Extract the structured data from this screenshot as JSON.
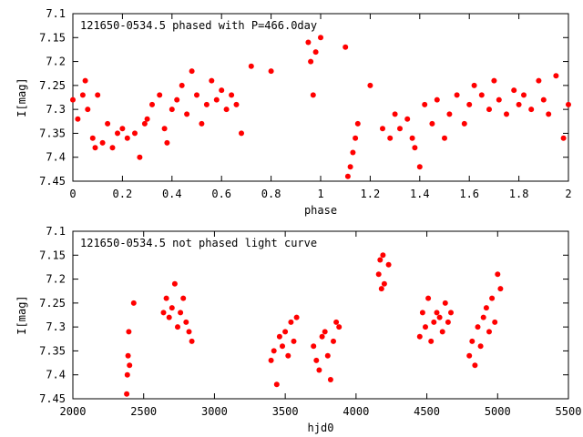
{
  "chart_data": [
    {
      "type": "scatter",
      "title": "121650-0534.5 phased with P=466.0day",
      "xlabel": "phase",
      "ylabel": "I[mag]",
      "xlim": [
        0,
        2
      ],
      "ylim": [
        7.1,
        7.45
      ],
      "y_inverted": true,
      "grid": false,
      "marker_color": "#ff0000",
      "marker": "filled-circle",
      "xticks": [
        "0",
        "0.2",
        "0.4",
        "0.6",
        "0.8",
        "1",
        "1.2",
        "1.4",
        "1.6",
        "1.8",
        "2"
      ],
      "yticks": [
        "7.1",
        "7.15",
        "7.2",
        "7.25",
        "7.3",
        "7.35",
        "7.4",
        "7.45"
      ],
      "series": [
        {
          "x": [
            0.0,
            0.02,
            0.04,
            0.05,
            0.06,
            0.08,
            0.09,
            0.1,
            0.12,
            0.14,
            0.16,
            0.18,
            0.2,
            0.22,
            0.25,
            0.27,
            0.29,
            0.3,
            0.32,
            0.35,
            0.37,
            0.38,
            0.4,
            0.42,
            0.44,
            0.46,
            0.48,
            0.5,
            0.52,
            0.54,
            0.56,
            0.58,
            0.6,
            0.62,
            0.64,
            0.66,
            0.68,
            0.72,
            0.8,
            0.95,
            0.96,
            0.97,
            0.98,
            1.0,
            1.1,
            1.11,
            1.12,
            1.13,
            1.14,
            1.15,
            1.2,
            1.25,
            1.28,
            1.3,
            1.32,
            1.35,
            1.37,
            1.38,
            1.4,
            1.42,
            1.45,
            1.47,
            1.5,
            1.52,
            1.55,
            1.58,
            1.6,
            1.62,
            1.65,
            1.68,
            1.7,
            1.72,
            1.75,
            1.78,
            1.8,
            1.82,
            1.85,
            1.88,
            1.9,
            1.92,
            1.95,
            1.98,
            2.0
          ],
          "y": [
            7.28,
            7.32,
            7.27,
            7.24,
            7.3,
            7.36,
            7.38,
            7.27,
            7.37,
            7.33,
            7.38,
            7.35,
            7.34,
            7.36,
            7.35,
            7.4,
            7.33,
            7.32,
            7.29,
            7.27,
            7.34,
            7.37,
            7.3,
            7.28,
            7.25,
            7.31,
            7.22,
            7.27,
            7.33,
            7.29,
            7.24,
            7.28,
            7.26,
            7.3,
            7.27,
            7.29,
            7.35,
            7.21,
            7.22,
            7.16,
            7.2,
            7.27,
            7.18,
            7.15,
            7.17,
            7.44,
            7.42,
            7.39,
            7.36,
            7.33,
            7.25,
            7.34,
            7.36,
            7.31,
            7.34,
            7.32,
            7.36,
            7.38,
            7.42,
            7.29,
            7.33,
            7.28,
            7.36,
            7.31,
            7.27,
            7.33,
            7.29,
            7.25,
            7.27,
            7.3,
            7.24,
            7.28,
            7.31,
            7.26,
            7.29,
            7.27,
            7.3,
            7.24,
            7.28,
            7.31,
            7.23,
            7.36,
            7.29
          ]
        }
      ],
      "annotations": [
        "121650-0534.5 phased with P=466.0day"
      ]
    },
    {
      "type": "scatter",
      "title": "121650-0534.5 not phased light curve",
      "xlabel": "hjd0",
      "ylabel": "I[mag]",
      "xlim": [
        2000,
        5500
      ],
      "ylim": [
        7.1,
        7.45
      ],
      "y_inverted": true,
      "grid": false,
      "marker_color": "#ff0000",
      "marker": "filled-circle",
      "xticks": [
        "2000",
        "2500",
        "3000",
        "3500",
        "4000",
        "4500",
        "5000",
        "5500"
      ],
      "yticks": [
        "7.1",
        "7.15",
        "7.2",
        "7.25",
        "7.3",
        "7.35",
        "7.4",
        "7.45"
      ],
      "series": [
        {
          "x": [
            2380,
            2385,
            2390,
            2395,
            2400,
            2430,
            2640,
            2660,
            2680,
            2700,
            2720,
            2740,
            2760,
            2780,
            2800,
            2820,
            2840,
            3400,
            3420,
            3440,
            3460,
            3480,
            3500,
            3520,
            3540,
            3560,
            3580,
            3700,
            3720,
            3740,
            3760,
            3780,
            3800,
            3820,
            3840,
            3860,
            3880,
            4160,
            4170,
            4180,
            4190,
            4200,
            4230,
            4450,
            4470,
            4490,
            4510,
            4530,
            4550,
            4570,
            4590,
            4610,
            4630,
            4650,
            4670,
            4800,
            4820,
            4840,
            4860,
            4880,
            4900,
            4920,
            4940,
            4960,
            4980,
            5000,
            5020
          ],
          "y": [
            7.44,
            7.4,
            7.36,
            7.31,
            7.38,
            7.25,
            7.27,
            7.24,
            7.28,
            7.26,
            7.21,
            7.3,
            7.27,
            7.24,
            7.29,
            7.31,
            7.33,
            7.37,
            7.35,
            7.42,
            7.32,
            7.34,
            7.31,
            7.36,
            7.29,
            7.33,
            7.28,
            7.34,
            7.37,
            7.39,
            7.32,
            7.31,
            7.36,
            7.41,
            7.33,
            7.29,
            7.3,
            7.19,
            7.16,
            7.22,
            7.15,
            7.21,
            7.17,
            7.32,
            7.27,
            7.3,
            7.24,
            7.33,
            7.29,
            7.27,
            7.28,
            7.31,
            7.25,
            7.29,
            7.27,
            7.36,
            7.33,
            7.38,
            7.3,
            7.34,
            7.28,
            7.26,
            7.31,
            7.24,
            7.29,
            7.19,
            7.22
          ]
        }
      ],
      "annotations": [
        "121650-0534.5 not phased light curve"
      ]
    }
  ]
}
